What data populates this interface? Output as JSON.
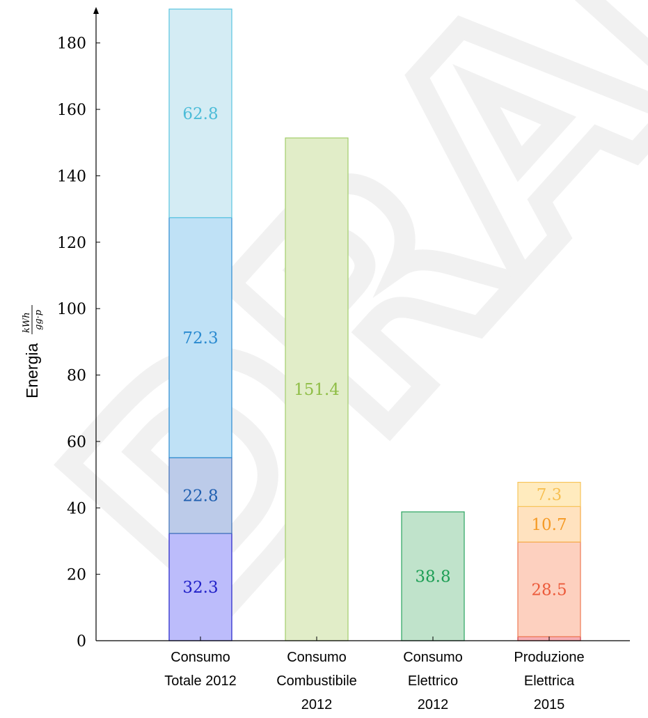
{
  "watermark": "DRAFT",
  "chart_data": {
    "type": "bar",
    "stacked": true,
    "ylabel": "Energia",
    "ylabel_unit_num": "kWh",
    "ylabel_unit_den": "gg·p",
    "ylim": [
      0,
      190
    ],
    "yticks": [
      0,
      20,
      40,
      60,
      80,
      100,
      120,
      140,
      160,
      180
    ],
    "grid": false,
    "legend": "none",
    "categories": [
      {
        "lines": [
          "Consumo",
          "Totale 2012"
        ]
      },
      {
        "lines": [
          "Consumo",
          "Combustibile",
          "2012"
        ]
      },
      {
        "lines": [
          "Consumo",
          "Elettrico",
          "2012"
        ]
      },
      {
        "lines": [
          "Produzione",
          "Elettrica",
          "2015"
        ]
      }
    ],
    "stacks": [
      [
        {
          "value": 32.3,
          "label": "32.3",
          "fill": "#bcbcfb",
          "stroke": "#2020c8",
          "text": "#2020c8"
        },
        {
          "value": 22.8,
          "label": "22.8",
          "fill": "#bccbe9",
          "stroke": "#3b6fb8",
          "text": "#1f5fb0"
        },
        {
          "value": 72.3,
          "label": "72.3",
          "fill": "#bfe1f6",
          "stroke": "#2a8ad0",
          "text": "#2a8ad0"
        },
        {
          "value": 62.8,
          "label": "62.8",
          "fill": "#d4ecf4",
          "stroke": "#58c4e0",
          "text": "#4cbcd8"
        }
      ],
      [
        {
          "value": 151.4,
          "label": "151.4",
          "fill": "#e1edc8",
          "stroke": "#a2cd6a",
          "text": "#8ebd45"
        }
      ],
      [
        {
          "value": 38.8,
          "label": "38.8",
          "fill": "#c0e3cb",
          "stroke": "#2aa460",
          "text": "#1d9e55"
        }
      ],
      [
        {
          "value": 1.2,
          "label": "",
          "fill": "#f6aeb3",
          "stroke": "#d03a45",
          "text": "#d03a45"
        },
        {
          "value": 28.5,
          "label": "28.5",
          "fill": "#fdd0bf",
          "stroke": "#ee7a55",
          "text": "#ec5a3a"
        },
        {
          "value": 10.7,
          "label": "10.7",
          "fill": "#ffe2bf",
          "stroke": "#f5aa45",
          "text": "#f59a25"
        },
        {
          "value": 7.3,
          "label": "7.3",
          "fill": "#ffebbe",
          "stroke": "#f7c45a",
          "text": "#f7bf50"
        }
      ]
    ]
  }
}
